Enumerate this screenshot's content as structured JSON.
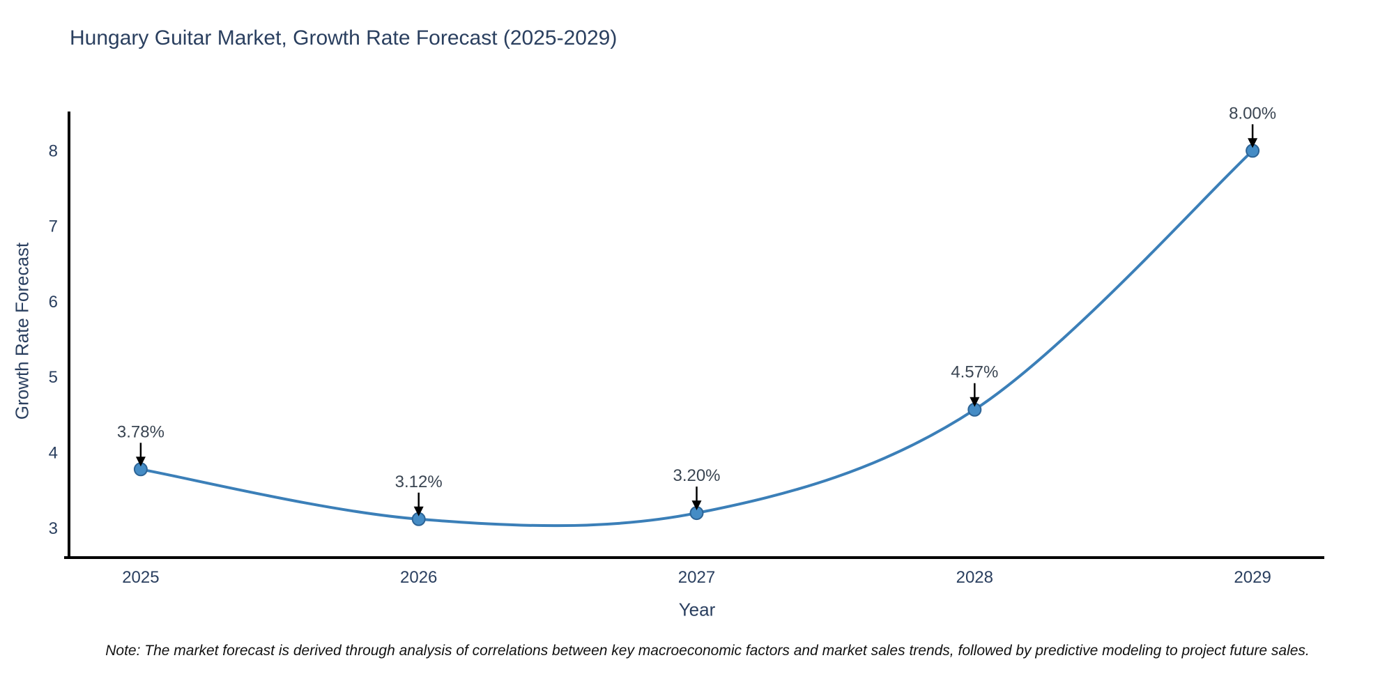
{
  "title": "Hungary Guitar Market, Growth Rate Forecast (2025-2029)",
  "note": "Note: The market forecast is derived through analysis of correlations between key macroeconomic factors and market sales trends, followed by predictive modeling to project future sales.",
  "chart_data": {
    "type": "line",
    "title": "Hungary Guitar Market, Growth Rate Forecast (2025-2029)",
    "xlabel": "Year",
    "ylabel": "Growth Rate Forecast",
    "x": [
      2025,
      2026,
      2027,
      2028,
      2029
    ],
    "x_tick_labels": [
      "2025",
      "2026",
      "2027",
      "2028",
      "2029"
    ],
    "values": [
      3.78,
      3.12,
      3.2,
      4.57,
      8.0
    ],
    "point_labels": [
      "3.78%",
      "3.12%",
      "3.20%",
      "4.57%",
      "8.00%"
    ],
    "y_ticks": [
      3,
      4,
      5,
      6,
      7,
      8
    ],
    "xlim": [
      2024.742,
      2029.258
    ],
    "ylim": [
      2.61,
      8.52
    ],
    "grid": false,
    "legend": "none",
    "line_shape": "spline",
    "colors": {
      "line": "#3b7fb8",
      "marker_fill": "#458cc5",
      "marker_edge": "#2d6496",
      "axis": "#000000",
      "tick_label": "#2a3f5f",
      "annotation_text": "#3a4552",
      "arrow": "#000000"
    },
    "line_width": 4,
    "marker_size": 9
  }
}
